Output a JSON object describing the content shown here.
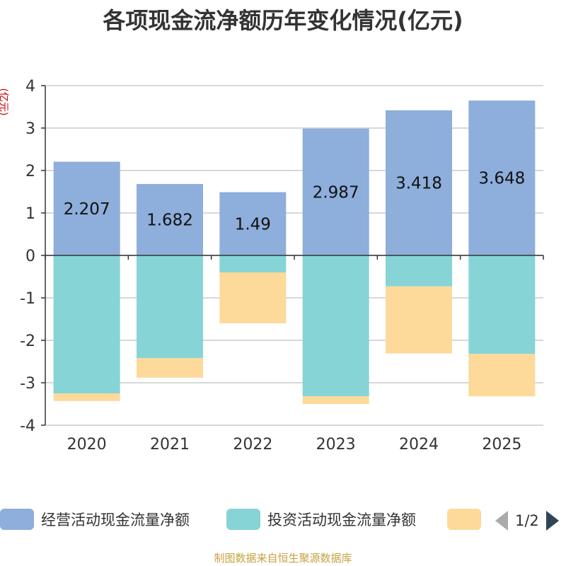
{
  "title": "各项现金流净额历年变化情况(亿元)",
  "y_unit": "(亿元)",
  "source": "制图数据来自恒生聚源数据库",
  "legend": {
    "items": [
      {
        "label": "经营活动现金流量净额",
        "color": "#8eaedb"
      },
      {
        "label": "投资活动现金流量净额",
        "color": "#86d4d6"
      },
      {
        "label": "",
        "color": "#fdd99a"
      }
    ],
    "page": "1/2"
  },
  "chart_data": {
    "type": "bar",
    "stacked": true,
    "categories": [
      "2020",
      "2021",
      "2022",
      "2023",
      "2024",
      "2025"
    ],
    "series": [
      {
        "name": "经营活动现金流量净额",
        "color": "#8eaedb",
        "values": [
          2.207,
          1.682,
          1.49,
          2.987,
          3.418,
          3.648
        ],
        "labels": [
          "2.207",
          "1.682",
          "1.49",
          "2.987",
          "3.418",
          "3.648"
        ]
      },
      {
        "name": "投资活动现金流量净额",
        "color": "#86d4d6",
        "values": [
          -3.25,
          -2.42,
          -0.4,
          -3.32,
          -0.73,
          -2.32
        ]
      },
      {
        "name": "",
        "color": "#fdd99a",
        "values": [
          -0.18,
          -0.46,
          -1.2,
          -0.18,
          -1.58,
          -1.0
        ]
      }
    ],
    "ylim": [
      -4,
      4
    ],
    "yticks": [
      4,
      3,
      2,
      1,
      0,
      -1,
      -2,
      -3,
      -4
    ],
    "ytick_labels": [
      "4",
      "3",
      "2",
      "1",
      "0",
      "-1",
      "-2",
      "-3",
      "-4"
    ],
    "title": "各项现金流净额历年变化情况(亿元)",
    "ylabel": "(亿元)",
    "xlabel": ""
  }
}
